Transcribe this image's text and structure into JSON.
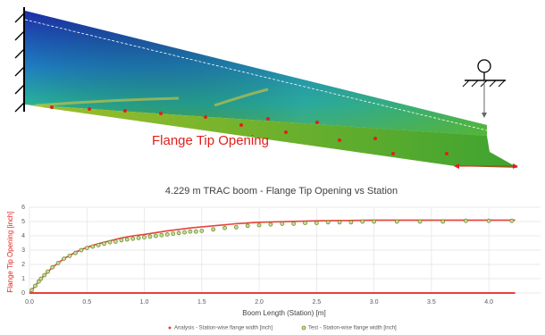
{
  "figure": {
    "annotation": "Flange Tip Opening"
  },
  "chart_data": {
    "type": "line",
    "title": "4.229 m TRAC boom - Flange Tip Opening vs Station",
    "x_label": "Boom Length (Station) [m]",
    "y_label": "Flange Tip Opening [inch]",
    "xlim": [
      0,
      4.45
    ],
    "ylim": [
      0,
      6
    ],
    "xticks": [
      {
        "value": 0,
        "label": "0.0"
      },
      0.5,
      {
        "value": 1,
        "label": "1.0"
      },
      1.5,
      {
        "value": 2,
        "label": "2.0"
      },
      2.5,
      {
        "value": 3,
        "label": "3.0"
      },
      3.5,
      {
        "value": 4,
        "label": "4.0"
      }
    ],
    "yticks": [
      0,
      1,
      2,
      3,
      4,
      5,
      6
    ],
    "grid": true,
    "series": [
      {
        "name": "Analysis - Station-wise flange width [inch]",
        "color": "#e8423a",
        "mode": "line",
        "x": [
          0,
          0.05,
          0.1,
          0.2,
          0.3,
          0.4,
          0.5,
          0.6,
          0.7,
          0.8,
          0.9,
          1.0,
          1.2,
          1.4,
          1.6,
          1.8,
          2.0,
          2.5,
          3.0,
          3.5,
          4.0,
          4.229
        ],
        "values": [
          0,
          0.5,
          1.0,
          1.8,
          2.4,
          2.85,
          3.2,
          3.45,
          3.65,
          3.85,
          4.0,
          4.1,
          4.35,
          4.55,
          4.7,
          4.85,
          4.95,
          5.05,
          5.1,
          5.1,
          5.1,
          5.1
        ]
      },
      {
        "name": "Test - Station-wise flange width [inch]",
        "color": "#6b8e23",
        "mode": "markers",
        "x": [
          0.02,
          0.05,
          0.08,
          0.1,
          0.13,
          0.16,
          0.2,
          0.25,
          0.3,
          0.35,
          0.4,
          0.45,
          0.5,
          0.55,
          0.6,
          0.65,
          0.7,
          0.75,
          0.8,
          0.85,
          0.9,
          0.95,
          1.0,
          1.05,
          1.1,
          1.15,
          1.2,
          1.25,
          1.3,
          1.35,
          1.4,
          1.45,
          1.5,
          1.6,
          1.7,
          1.8,
          1.9,
          2.0,
          2.1,
          2.2,
          2.3,
          2.4,
          2.5,
          2.6,
          2.7,
          2.8,
          2.9,
          3.0,
          3.2,
          3.4,
          3.6,
          3.8,
          4.0,
          4.2
        ],
        "values": [
          0.2,
          0.5,
          0.8,
          1.0,
          1.25,
          1.5,
          1.8,
          2.1,
          2.4,
          2.6,
          2.8,
          3.0,
          3.15,
          3.25,
          3.35,
          3.45,
          3.55,
          3.6,
          3.7,
          3.75,
          3.8,
          3.85,
          3.9,
          3.95,
          4.0,
          4.05,
          4.1,
          4.15,
          4.2,
          4.25,
          4.3,
          4.3,
          4.35,
          4.45,
          4.55,
          4.6,
          4.7,
          4.75,
          4.8,
          4.85,
          4.85,
          4.9,
          4.9,
          4.95,
          4.95,
          4.95,
          5.0,
          5.0,
          5.0,
          5.0,
          5.0,
          5.05,
          5.05,
          5.05
        ]
      }
    ]
  }
}
